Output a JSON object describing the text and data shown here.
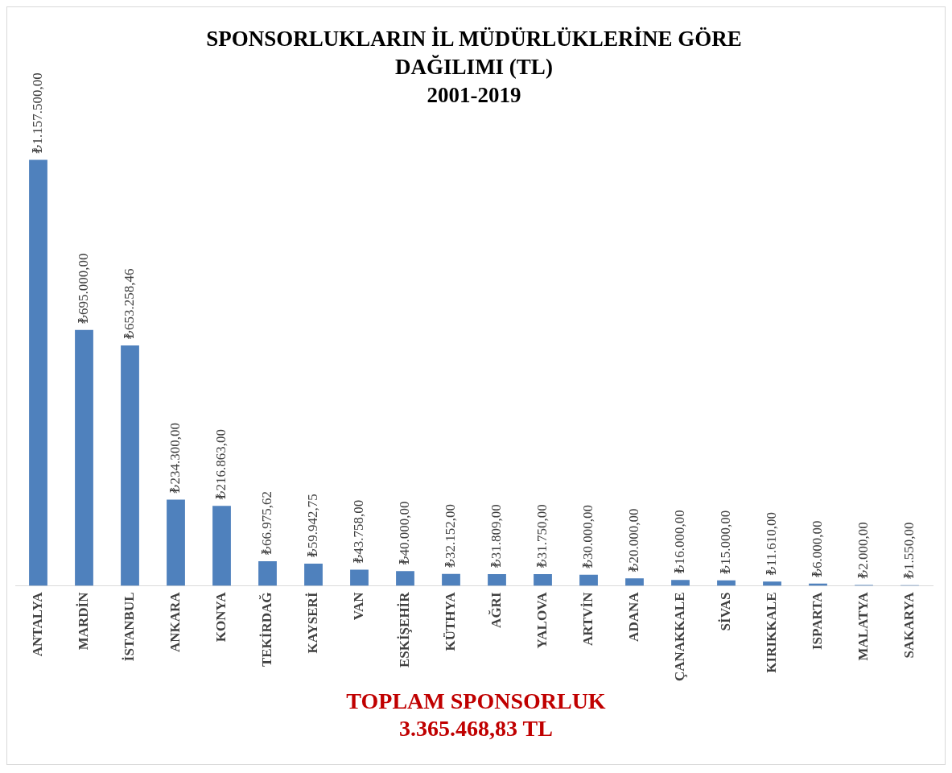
{
  "chart_data": {
    "type": "bar",
    "title": "SPONSORLUKLARIN İL MÜDÜRLÜKLERİNE GÖRE DAĞILIMI (TL)",
    "subtitle": "2001-2019",
    "categories": [
      "ANTALYA",
      "MARDİN",
      "İSTANBUL",
      "ANKARA",
      "KONYA",
      "TEKİRDAĞ",
      "KAYSERİ",
      "VAN",
      "ESKİŞEHİR",
      "KÜTHYA",
      "AĞRI",
      "YALOVA",
      "ARTVİN",
      "ADANA",
      "ÇANAKKALE",
      "SİVAS",
      "KIRIKKALE",
      "ISPARTA",
      "MALATYA",
      "SAKARYA"
    ],
    "values": [
      1157500,
      695000,
      653258.46,
      234300,
      216863,
      66975.62,
      59942.75,
      43758,
      40000,
      32152,
      31809,
      31750,
      30000,
      20000,
      16000,
      15000,
      11610,
      6000,
      2000,
      1550
    ],
    "value_labels": [
      "₺1.157.500,00",
      "₺695.000,00",
      "₺653.258,46",
      "₺234.300,00",
      "₺216.863,00",
      "₺66.975,62",
      "₺59.942,75",
      "₺43.758,00",
      "₺40.000,00",
      "₺32.152,00",
      "₺31.809,00",
      "₺31.750,00",
      "₺30.000,00",
      "₺20.000,00",
      "₺16.000,00",
      "₺15.000,00",
      "₺11.610,00",
      "₺6.000,00",
      "₺2.000,00",
      "₺1.550,00"
    ],
    "color": "#4f81bd",
    "annotations": [
      "TOPLAM SPONSORLUK",
      "3.365.468,83 TL"
    ]
  }
}
